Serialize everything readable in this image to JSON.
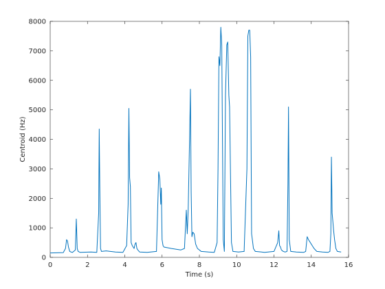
{
  "chart_data": {
    "type": "line",
    "title": "",
    "xlabel": "Time (s)",
    "ylabel": "Centroid (Hz)",
    "xlim": [
      0,
      16
    ],
    "ylim": [
      0,
      8000
    ],
    "xticks": [
      0,
      2,
      4,
      6,
      8,
      10,
      12,
      14,
      16
    ],
    "yticks": [
      0,
      1000,
      2000,
      3000,
      4000,
      5000,
      6000,
      7000,
      8000
    ],
    "grid": false,
    "legend": "none",
    "series": [
      {
        "color": "#0072BD",
        "x": [
          0.0,
          0.7,
          0.82,
          0.88,
          0.93,
          0.98,
          1.05,
          1.12,
          1.2,
          1.35,
          1.4,
          1.45,
          1.5,
          1.6,
          2.2,
          2.5,
          2.6,
          2.63,
          2.66,
          2.7,
          2.75,
          3.0,
          3.5,
          3.9,
          4.1,
          4.18,
          4.22,
          4.26,
          4.3,
          4.34,
          4.4,
          4.5,
          4.55,
          4.6,
          4.65,
          4.7,
          4.8,
          5.2,
          5.7,
          5.82,
          5.88,
          5.93,
          5.96,
          6.0,
          6.05,
          6.1,
          6.5,
          7.0,
          7.2,
          7.3,
          7.35,
          7.4,
          7.48,
          7.52,
          7.56,
          7.6,
          7.65,
          7.72,
          7.8,
          7.9,
          8.1,
          8.5,
          8.8,
          8.95,
          9.0,
          9.05,
          9.1,
          9.15,
          9.2,
          9.28,
          9.34,
          9.4,
          9.47,
          9.52,
          9.58,
          9.62,
          9.66,
          9.72,
          9.8,
          10.1,
          10.4,
          10.55,
          10.6,
          10.65,
          10.7,
          10.75,
          10.8,
          10.85,
          10.9,
          11.0,
          11.5,
          12.0,
          12.2,
          12.26,
          12.3,
          12.35,
          12.4,
          12.5,
          12.6,
          12.7,
          12.75,
          12.78,
          12.82,
          12.9,
          13.2,
          13.6,
          13.7,
          13.78,
          13.85,
          13.95,
          14.05,
          14.15,
          14.3,
          14.6,
          14.9,
          15.0,
          15.05,
          15.08,
          15.12,
          15.16,
          15.2,
          15.25,
          15.32,
          15.4,
          15.6
        ],
        "y": [
          150,
          160,
          300,
          600,
          550,
          350,
          200,
          180,
          170,
          250,
          1300,
          300,
          200,
          170,
          180,
          170,
          1500,
          4350,
          2400,
          300,
          200,
          220,
          180,
          170,
          400,
          1800,
          5050,
          2700,
          2400,
          500,
          400,
          300,
          450,
          500,
          300,
          250,
          180,
          170,
          200,
          2900,
          2650,
          1800,
          2350,
          600,
          400,
          350,
          300,
          250,
          300,
          1600,
          800,
          1600,
          4200,
          5700,
          2200,
          700,
          850,
          800,
          450,
          300,
          200,
          180,
          170,
          500,
          3000,
          6800,
          6500,
          7800,
          7200,
          600,
          200,
          5500,
          7200,
          7300,
          5500,
          5100,
          3200,
          500,
          200,
          180,
          200,
          3000,
          7500,
          7700,
          7700,
          6800,
          800,
          550,
          300,
          200,
          170,
          200,
          500,
          900,
          400,
          350,
          250,
          200,
          180,
          200,
          2500,
          5100,
          600,
          200,
          180,
          170,
          200,
          700,
          600,
          500,
          400,
          300,
          200,
          180,
          170,
          200,
          800,
          3400,
          1500,
          1200,
          900,
          600,
          300,
          200,
          180
        ]
      }
    ]
  }
}
